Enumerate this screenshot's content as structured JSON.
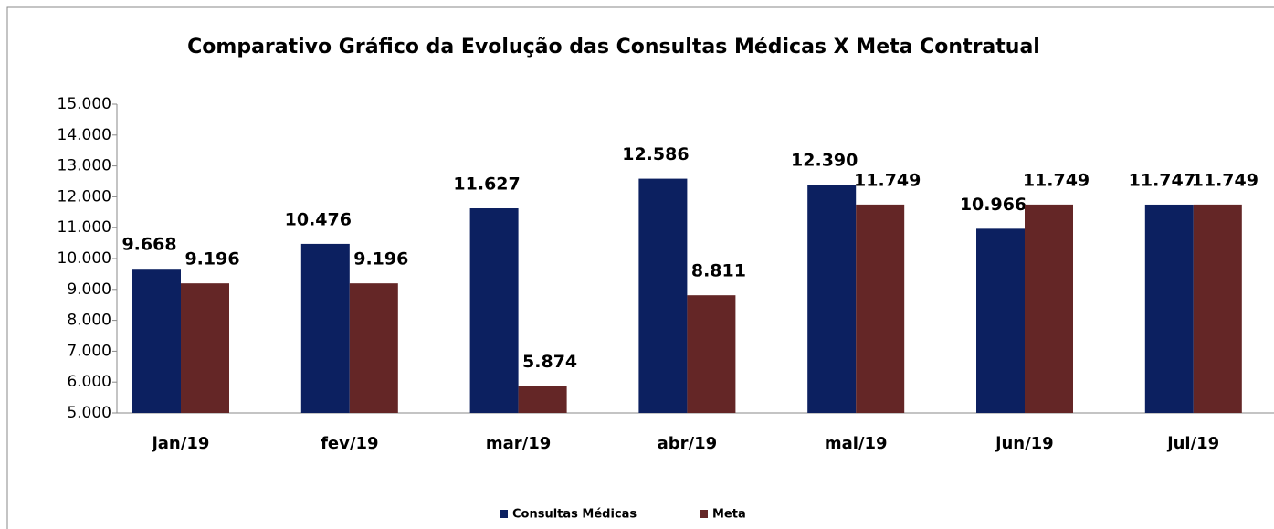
{
  "chart_data": {
    "type": "bar",
    "title": "Comparativo Gráfico da Evolução das Consultas Médicas X Meta Contratual",
    "categories": [
      "jan/19",
      "fev/19",
      "mar/19",
      "abr/19",
      "mai/19",
      "jun/19",
      "jul/19"
    ],
    "series": [
      {
        "name": "Consultas Médicas",
        "color": "#0c2060",
        "values": [
          9668,
          10476,
          11627,
          12586,
          12390,
          10966,
          11747
        ],
        "value_labels": [
          "9.668",
          "10.476",
          "11.627",
          "12.586",
          "12.390",
          "10.966",
          "11.747"
        ]
      },
      {
        "name": "Meta",
        "color": "#642626",
        "values": [
          9196,
          9196,
          5874,
          8811,
          11749,
          11749,
          11749
        ],
        "value_labels": [
          "9.196",
          "9.196",
          "5.874",
          "8.811",
          "11.749",
          "11.749",
          "11.749"
        ]
      }
    ],
    "ylim": [
      5000,
      15000
    ],
    "yticks": [
      {
        "value": 5000,
        "label": "5.000"
      },
      {
        "value": 6000,
        "label": "6.000"
      },
      {
        "value": 7000,
        "label": "7.000"
      },
      {
        "value": 8000,
        "label": "8.000"
      },
      {
        "value": 9000,
        "label": "9.000"
      },
      {
        "value": 10000,
        "label": "10.000"
      },
      {
        "value": 11000,
        "label": "11.000"
      },
      {
        "value": 12000,
        "label": "12.000"
      },
      {
        "value": 13000,
        "label": "13.000"
      },
      {
        "value": 14000,
        "label": "14.000"
      },
      {
        "value": 15000,
        "label": "15.000"
      }
    ],
    "legend": "bottom"
  }
}
